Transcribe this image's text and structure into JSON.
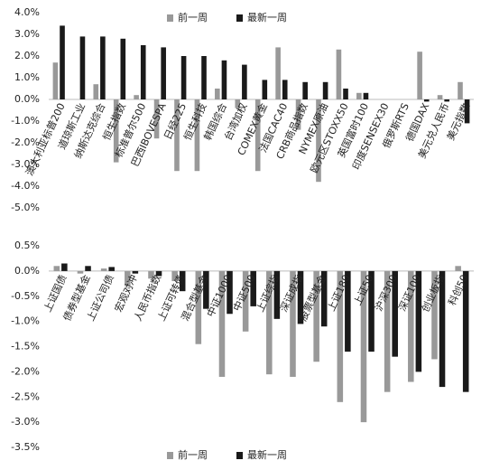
{
  "chart_data": [
    {
      "type": "bar",
      "categories": [
        "澳大利亚标普200",
        "道琼斯工业",
        "纳斯达克综合",
        "恒生指数",
        "标准普尔500",
        "巴西IBOVESPA",
        "日经225",
        "恒生科技",
        "韩国综合",
        "台湾加权",
        "COMEX黄金",
        "法国CAC40",
        "CRB商品指数",
        "NYMEX原油",
        "欧元区STOXX50",
        "英国富时100",
        "印度SENSEX30",
        "俄罗斯RTS",
        "德国DAX",
        "美元兑人民币",
        "美元指数"
      ],
      "series": [
        {
          "name": "前一周",
          "color": "#999999",
          "values": [
            1.7,
            0,
            0.7,
            -2.9,
            0.2,
            -1.8,
            -3.3,
            -3.3,
            0.5,
            -0.4,
            -3.3,
            2.4,
            -1.4,
            -3.8,
            2.3,
            0.3,
            0,
            0,
            2.2,
            0.2,
            0.8
          ]
        },
        {
          "name": "最新一周",
          "color": "#1a1a1a",
          "values": [
            3.4,
            2.9,
            2.9,
            2.8,
            2.5,
            2.4,
            2.0,
            2.0,
            1.8,
            1.6,
            0.9,
            0.9,
            0.8,
            0.8,
            0.5,
            0.3,
            0,
            0,
            -0.1,
            -0.1,
            -1.1
          ]
        }
      ],
      "ylim": [
        -5,
        4
      ],
      "yticks": [
        {
          "value": 4,
          "label": "4.0%"
        },
        {
          "value": 3,
          "label": "3.0%"
        },
        {
          "value": 2,
          "label": "2.0%"
        },
        {
          "value": 1,
          "label": "1.0%"
        },
        {
          "value": 0,
          "label": "0.0%"
        },
        {
          "value": -1,
          "label": "-1.0%"
        },
        {
          "value": -2,
          "label": "-2.0%"
        },
        {
          "value": -3,
          "label": "-3.0%"
        },
        {
          "value": -4,
          "label": "-4.0%"
        },
        {
          "value": -5,
          "label": "-5.0%"
        }
      ],
      "grid": false,
      "legend": "top"
    },
    {
      "type": "bar",
      "categories": [
        "上证国债",
        "债券型基金",
        "上证公司债",
        "宏观对冲",
        "人民币指数",
        "上证可转债",
        "混合型基金",
        "中证1000",
        "中证500",
        "上证综指",
        "深证成指",
        "股票型基金",
        "上证180",
        "上证50",
        "沪深300",
        "深证100",
        "创业板指",
        "科创50"
      ],
      "series": [
        {
          "name": "前一周",
          "color": "#999999",
          "values": [
            0.1,
            -0.05,
            0.05,
            -0.3,
            -0.15,
            -0.2,
            -1.45,
            -2.1,
            -1.2,
            -2.05,
            -2.1,
            -1.8,
            -2.6,
            -3.0,
            -2.4,
            -2.2,
            -1.75,
            0.1
          ]
        },
        {
          "name": "最新一周",
          "color": "#1a1a1a",
          "values": [
            0.15,
            0.1,
            0.08,
            -0.05,
            -0.1,
            -0.4,
            -0.75,
            -0.85,
            -0.7,
            -0.95,
            -1.05,
            -1.1,
            -1.6,
            -1.6,
            -1.7,
            -2.0,
            -2.3,
            -2.4
          ]
        }
      ],
      "ylim": [
        -3.5,
        0.5
      ],
      "yticks": [
        {
          "value": 0.5,
          "label": "0.5%"
        },
        {
          "value": 0,
          "label": "0.0%"
        },
        {
          "value": -0.5,
          "label": "-0.5%"
        },
        {
          "value": -1,
          "label": "-1.0%"
        },
        {
          "value": -1.5,
          "label": "-1.5%"
        },
        {
          "value": -2,
          "label": "-2.0%"
        },
        {
          "value": -2.5,
          "label": "-2.5%"
        },
        {
          "value": -3,
          "label": "-3.0%"
        },
        {
          "value": -3.5,
          "label": "-3.5%"
        }
      ],
      "grid": false,
      "legend": "bottom"
    }
  ]
}
